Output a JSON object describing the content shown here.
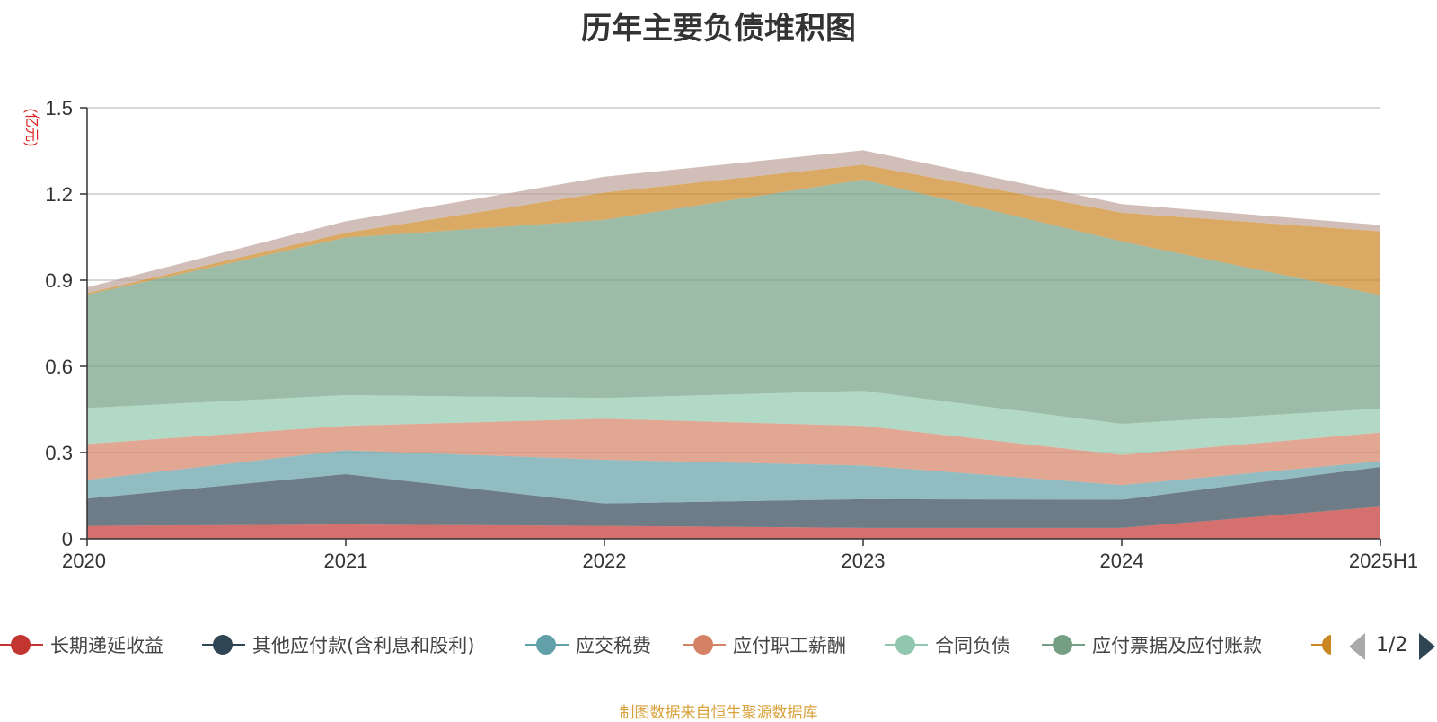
{
  "chart_data": {
    "type": "area",
    "stacked": true,
    "title": "历年主要负债堆积图",
    "ylabel": "(亿元)",
    "ylim": [
      0,
      1.5
    ],
    "yticks": [
      "0",
      "0.3",
      "0.6",
      "0.9",
      "1.2",
      "1.5"
    ],
    "categories": [
      "2020",
      "2021",
      "2022",
      "2023",
      "2024",
      "2025H1"
    ],
    "grid": true,
    "legend_position": "bottom",
    "series": [
      {
        "name": "长期递延收益",
        "color": "#c23531",
        "values": [
          0.045,
          0.05,
          0.045,
          0.038,
          0.038,
          0.112
        ]
      },
      {
        "name": "其他应付款(含利息和股利)",
        "color": "#2f4554",
        "values": [
          0.095,
          0.175,
          0.078,
          0.1,
          0.098,
          0.138
        ]
      },
      {
        "name": "应交税费",
        "color": "#61a0a8",
        "values": [
          0.065,
          0.083,
          0.152,
          0.117,
          0.051,
          0.02
        ]
      },
      {
        "name": "应付职工薪酬",
        "color": "#d48265",
        "values": [
          0.125,
          0.085,
          0.143,
          0.138,
          0.105,
          0.1
        ]
      },
      {
        "name": "合同负债",
        "color": "#91c7ae",
        "values": [
          0.125,
          0.107,
          0.072,
          0.122,
          0.108,
          0.083
        ]
      },
      {
        "name": "应付票据及应付账款",
        "color": "#749f83",
        "values": [
          0.395,
          0.548,
          0.62,
          0.735,
          0.635,
          0.395
        ]
      },
      {
        "name": "",
        "color": "#ca8622",
        "values": [
          0.005,
          0.017,
          0.095,
          0.052,
          0.1,
          0.222
        ]
      },
      {
        "name": "",
        "color": "#bda29a",
        "values": [
          0.02,
          0.04,
          0.055,
          0.05,
          0.03,
          0.022
        ]
      }
    ]
  },
  "legend": {
    "page_indicator": "1/2"
  },
  "footer": {
    "source": "制图数据来自恒生聚源数据库"
  }
}
